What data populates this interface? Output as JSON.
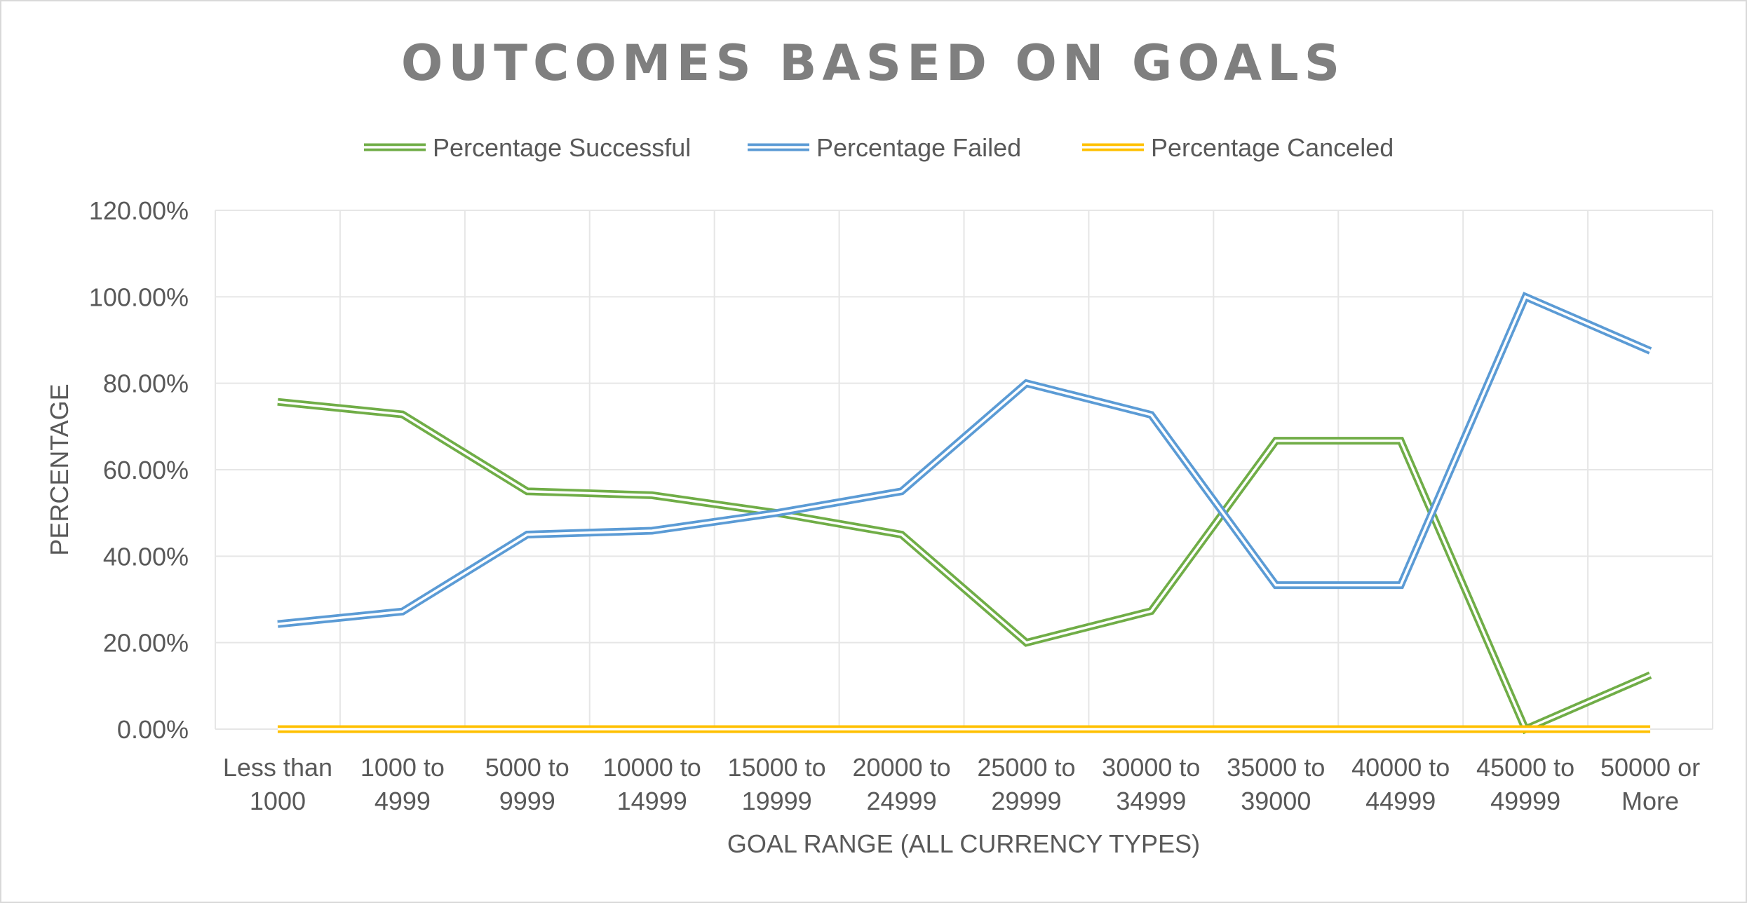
{
  "chart_data": {
    "type": "line",
    "title": "OUTCOMES BASED ON GOALS",
    "xlabel": "GOAL RANGE (ALL CURRENCY TYPES)",
    "ylabel": "PERCENTAGE",
    "categories": [
      [
        "Less than",
        "1000"
      ],
      [
        "1000 to",
        "4999"
      ],
      [
        "5000 to",
        "9999"
      ],
      [
        "10000 to",
        "14999"
      ],
      [
        "15000 to",
        "19999"
      ],
      [
        "20000 to",
        "24999"
      ],
      [
        "25000 to",
        "29999"
      ],
      [
        "30000 to",
        "34999"
      ],
      [
        "35000 to",
        "39000"
      ],
      [
        "40000 to",
        "44999"
      ],
      [
        "45000 to",
        "49999"
      ],
      [
        "50000 or",
        "More"
      ]
    ],
    "ylim": [
      0,
      1.2
    ],
    "yticks": [
      {
        "value": 0,
        "label": "0.00%"
      },
      {
        "value": 0.2,
        "label": "20.00%"
      },
      {
        "value": 0.4,
        "label": "40.00%"
      },
      {
        "value": 0.6,
        "label": "60.00%"
      },
      {
        "value": 0.8,
        "label": "80.00%"
      },
      {
        "value": 1.0,
        "label": "100.00%"
      },
      {
        "value": 1.2,
        "label": "120.00%"
      }
    ],
    "grid": true,
    "legend_position": "top",
    "series": [
      {
        "name": "Percentage Successful",
        "color": "#70ad47",
        "values": [
          0.757,
          0.728,
          0.55,
          0.541,
          0.5,
          0.45,
          0.2,
          0.273,
          0.667,
          0.667,
          0.0,
          0.125
        ]
      },
      {
        "name": "Percentage Failed",
        "color": "#5b9bd5",
        "values": [
          0.243,
          0.272,
          0.45,
          0.459,
          0.5,
          0.55,
          0.8,
          0.727,
          0.333,
          0.333,
          1.0,
          0.875
        ]
      },
      {
        "name": "Percentage Canceled",
        "color": "#ffc000",
        "values": [
          0,
          0,
          0,
          0,
          0,
          0,
          0,
          0,
          0,
          0,
          0,
          0
        ]
      }
    ]
  }
}
